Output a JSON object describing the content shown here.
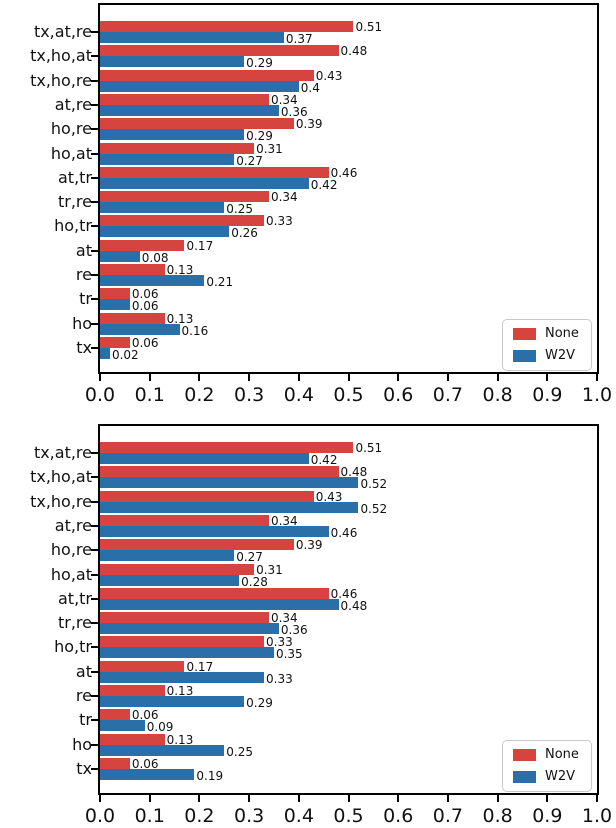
{
  "chart_data": [
    {
      "type": "bar",
      "orientation": "horizontal",
      "title": "",
      "xlabel": "",
      "ylabel": "",
      "categories": [
        "tx,at,re",
        "tx,ho,at",
        "tx,ho,re",
        "at,re",
        "ho,re",
        "ho,at",
        "at,tr",
        "tr,re",
        "ho,tr",
        "at",
        "re",
        "tr",
        "ho",
        "tx"
      ],
      "series": [
        {
          "name": "None",
          "color": "#d5443f",
          "values": [
            0.51,
            0.48,
            0.43,
            0.34,
            0.39,
            0.31,
            0.46,
            0.34,
            0.33,
            0.17,
            0.13,
            0.06,
            0.13,
            0.06
          ]
        },
        {
          "name": "W2V",
          "color": "#2b6fa8",
          "values": [
            0.37,
            0.29,
            0.4,
            0.36,
            0.29,
            0.27,
            0.42,
            0.25,
            0.26,
            0.08,
            0.21,
            0.06,
            0.16,
            0.02
          ]
        }
      ],
      "xlim": [
        0.0,
        1.0
      ],
      "xticks": [
        "0.0",
        "0.1",
        "0.2",
        "0.3",
        "0.4",
        "0.5",
        "0.6",
        "0.7",
        "0.8",
        "0.9",
        "1.0"
      ],
      "bar_value_labels": true,
      "grid": false,
      "legend": {
        "position": "lower right",
        "entries": [
          "None",
          "W2V"
        ]
      }
    },
    {
      "type": "bar",
      "orientation": "horizontal",
      "title": "",
      "xlabel": "",
      "ylabel": "",
      "categories": [
        "tx,at,re",
        "tx,ho,at",
        "tx,ho,re",
        "at,re",
        "ho,re",
        "ho,at",
        "at,tr",
        "tr,re",
        "ho,tr",
        "at",
        "re",
        "tr",
        "ho",
        "tx"
      ],
      "series": [
        {
          "name": "None",
          "color": "#d5443f",
          "values": [
            0.51,
            0.48,
            0.43,
            0.34,
            0.39,
            0.31,
            0.46,
            0.34,
            0.33,
            0.17,
            0.13,
            0.06,
            0.13,
            0.06
          ]
        },
        {
          "name": "W2V",
          "color": "#2b6fa8",
          "values": [
            0.42,
            0.52,
            0.52,
            0.46,
            0.27,
            0.28,
            0.48,
            0.36,
            0.35,
            0.33,
            0.29,
            0.09,
            0.25,
            0.19
          ]
        }
      ],
      "xlim": [
        0.0,
        1.0
      ],
      "xticks": [
        "0.0",
        "0.1",
        "0.2",
        "0.3",
        "0.4",
        "0.5",
        "0.6",
        "0.7",
        "0.8",
        "0.9",
        "1.0"
      ],
      "bar_value_labels": true,
      "grid": false,
      "legend": {
        "position": "lower right",
        "entries": [
          "None",
          "W2V"
        ]
      }
    }
  ],
  "colors": {
    "series_none": "#d5443f",
    "series_w2v": "#2b6fa8",
    "axis": "#000000",
    "text": "#111111",
    "legend_border": "#c9c9c9",
    "background": "#ffffff"
  }
}
